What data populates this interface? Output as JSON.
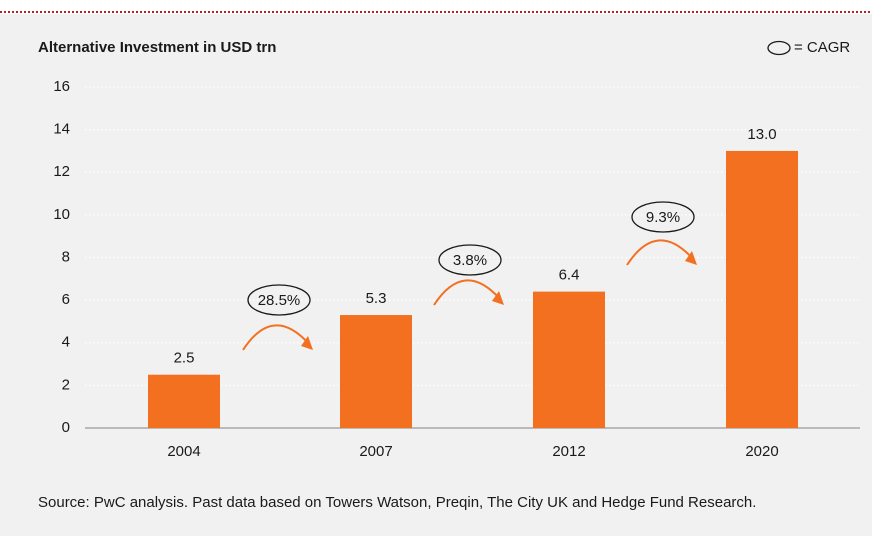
{
  "chart_data": {
    "type": "bar",
    "title": "Alternative Investment in USD trn",
    "legend_note": "= CAGR",
    "categories": [
      "2004",
      "2007",
      "2012",
      "2020"
    ],
    "values": [
      2.5,
      5.3,
      6.4,
      13.0
    ],
    "value_labels": [
      "2.5",
      "5.3",
      "6.4",
      "13.0"
    ],
    "color": "#f37021",
    "ylim": [
      0,
      16
    ],
    "yticks": [
      0,
      2,
      4,
      6,
      8,
      10,
      12,
      14,
      16
    ],
    "grid": true,
    "annotations": [
      "28.5%",
      "3.8%",
      "9.3%"
    ],
    "source": "Source: PwC analysis. Past data based on Towers Watson, Preqin, The City UK and Hedge Fund Research."
  }
}
